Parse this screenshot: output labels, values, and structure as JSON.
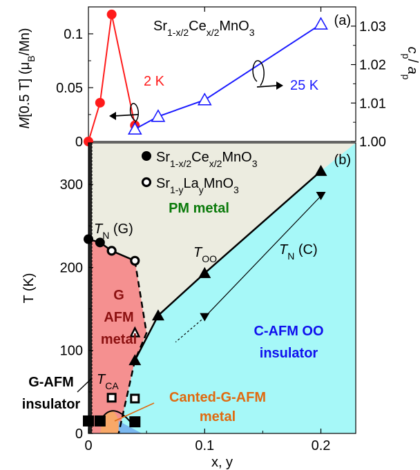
{
  "chart_data": [
    {
      "panel": "(a)",
      "type": "line",
      "title": "Sr1-x/2Cex/2MnO3",
      "title_parts": [
        "Sr",
        "1-x/2",
        "Ce",
        "x/2",
        "MnO",
        "3"
      ],
      "xlim": [
        0,
        0.23
      ],
      "ylabel_left": "M[0.5 T] (μB/Mn)",
      "ylabel_left_parts": [
        "M",
        "[0.5 T] (μ",
        "B",
        "/Mn)"
      ],
      "ylim_left": [
        0,
        0.125
      ],
      "yticks_left": [
        "0",
        "0.05",
        "0.1"
      ],
      "ylabel_right": "cp/ap",
      "ylabel_right_parts": [
        "c",
        "p",
        "/ ",
        "a",
        "p"
      ],
      "ylim_right": [
        1.0,
        1.035
      ],
      "yticks_right": [
        "1.00",
        "1.01",
        "1.02",
        "1.03"
      ],
      "series": [
        {
          "name": "2 K",
          "axis": "left",
          "color": "#ff1a1a",
          "marker": "filled-circle",
          "x": [
            0,
            0.01,
            0.02,
            0.04
          ],
          "y": [
            0.0,
            0.036,
            0.118,
            0.015
          ]
        },
        {
          "name": "25 K",
          "axis": "right",
          "color": "#1a1aff",
          "marker": "open-triangle",
          "x": [
            0.04,
            0.06,
            0.1,
            0.2
          ],
          "y": [
            1.0032,
            1.0065,
            1.0108,
            1.0305
          ]
        }
      ]
    },
    {
      "panel": "(b)",
      "type": "scatter",
      "xlabel": "x, y",
      "xlim": [
        0,
        0.23
      ],
      "xticks": [
        "0",
        "0.1",
        "0.2"
      ],
      "ylabel": "T (K)",
      "ylim": [
        0,
        350
      ],
      "yticks": [
        "0",
        "100",
        "200",
        "300"
      ],
      "legend": [
        {
          "label": "Sr1-x/2Cex/2MnO3",
          "parts": [
            "Sr",
            "1-x/2",
            "Ce",
            "x/2",
            "MnO",
            "3"
          ],
          "marker": "filled-circle"
        },
        {
          "label": "Sr1-yLayMnO3",
          "parts": [
            "Sr",
            "1-y",
            "La",
            "y",
            "MnO",
            "3"
          ],
          "marker": "open-circle-thick"
        }
      ],
      "regions": [
        {
          "label": "PM metal",
          "color": "#ecece0",
          "text_color": "#0a7a0a"
        },
        {
          "label": "G AFM metal",
          "lines": [
            "G",
            "AFM",
            "metal"
          ],
          "color": "#f59090",
          "text_color": "#8b1010"
        },
        {
          "label": "C-AFM OO insulator",
          "lines": [
            "C-AFM OO",
            "insulator"
          ],
          "color": "#a6f8f8",
          "text_color": "#1010ee"
        },
        {
          "label": "G-AFM insulator",
          "lines": [
            "G-AFM",
            "insulator"
          ],
          "color": "#222222",
          "text_color": "#000000"
        },
        {
          "label": "Canted-G-AFM metal",
          "lines": [
            "Canted-G-AFM",
            "metal"
          ],
          "color": "#f8a868",
          "text_color": "#e06a10"
        }
      ],
      "annotations": {
        "tn_g": {
          "main": "T",
          "sub": "N",
          "rest": " (G)"
        },
        "too": {
          "main": "T",
          "sub": "OO"
        },
        "tn_c": {
          "main": "T",
          "sub": "N",
          "rest": " (C)"
        },
        "tca": {
          "main": "T",
          "sub": "CA"
        }
      },
      "series": [
        {
          "name": "TN (G) Sr1-x/2Cex/2MnO3",
          "marker": "filled-circle",
          "x": [
            0,
            0.01
          ],
          "y": [
            234,
            230
          ]
        },
        {
          "name": "TN (G) Sr1-yLayMnO3",
          "marker": "open-circle-thick",
          "x": [
            0.02,
            0.04
          ],
          "y": [
            220,
            208
          ]
        },
        {
          "name": "TOO",
          "marker": "filled-triangle-up",
          "x": [
            0.04,
            0.06,
            0.1,
            0.2
          ],
          "y": [
            88,
            142,
            193,
            316
          ]
        },
        {
          "name": "TOO open",
          "marker": "open-triangle-up",
          "x": [
            0.04
          ],
          "y": [
            121
          ]
        },
        {
          "name": "TN (C)",
          "marker": "filled-triangle-down",
          "x": [
            0.1,
            0.2
          ],
          "y": [
            140,
            286
          ]
        },
        {
          "name": "TCA",
          "marker": "filled-square",
          "x": [
            0.0,
            0.01,
            0.04
          ],
          "y": [
            15,
            15,
            14
          ]
        },
        {
          "name": "TCA open",
          "marker": "open-square-thick",
          "x": [
            0.02,
            0.04
          ],
          "y": [
            43,
            42
          ]
        }
      ]
    }
  ]
}
